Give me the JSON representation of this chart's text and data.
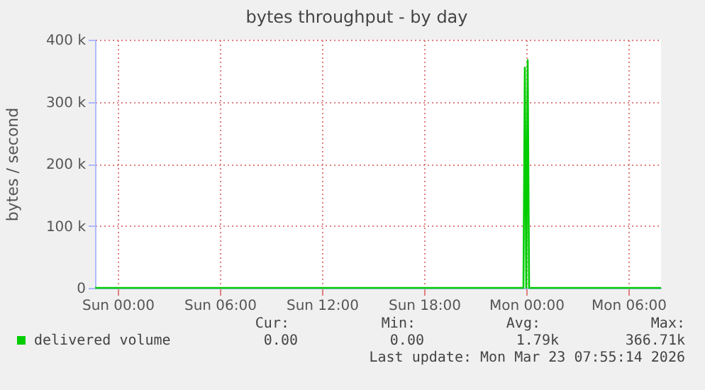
{
  "chart_data": {
    "type": "line",
    "title": "bytes throughput - by day",
    "ylabel": "bytes / second",
    "x": [
      "2026-03-21T22:40",
      "2026-03-22T23:50",
      "2026-03-22T23:55",
      "2026-03-23T00:00",
      "2026-03-23T00:05",
      "2026-03-23T00:10",
      "2026-03-23T07:55"
    ],
    "series": [
      {
        "name": "delivered volume",
        "color": "#00cc00",
        "values": [
          0,
          0,
          355000,
          0,
          367000,
          0,
          0
        ]
      }
    ],
    "xlim": [
      "2026-03-21T22:40",
      "2026-03-23T07:55"
    ],
    "xticks": [
      {
        "value": "2026-03-22T00:00",
        "label": "Sun 00:00"
      },
      {
        "value": "2026-03-22T06:00",
        "label": "Sun 06:00"
      },
      {
        "value": "2026-03-22T12:00",
        "label": "Sun 12:00"
      },
      {
        "value": "2026-03-22T18:00",
        "label": "Sun 18:00"
      },
      {
        "value": "2026-03-23T00:00",
        "label": "Mon 00:00"
      },
      {
        "value": "2026-03-23T06:00",
        "label": "Mon 06:00"
      }
    ],
    "ylim": [
      0,
      400000
    ],
    "yticks": [
      0,
      {
        "value": 100000,
        "label": "100 k"
      },
      {
        "value": 200000,
        "label": "200 k"
      },
      {
        "value": 300000,
        "label": "300 k"
      },
      {
        "value": 400000,
        "label": "400 k"
      }
    ],
    "grid": true,
    "legend": "bottom left",
    "marker": "none",
    "line_style": "solid",
    "annotations": [
      "Cur:",
      "Min:",
      "Avg:",
      "Max:",
      "0.00",
      "0.00",
      "1.79k",
      "366.71k",
      "Last update: Mon Mar 23 07:55:14 2026"
    ]
  }
}
